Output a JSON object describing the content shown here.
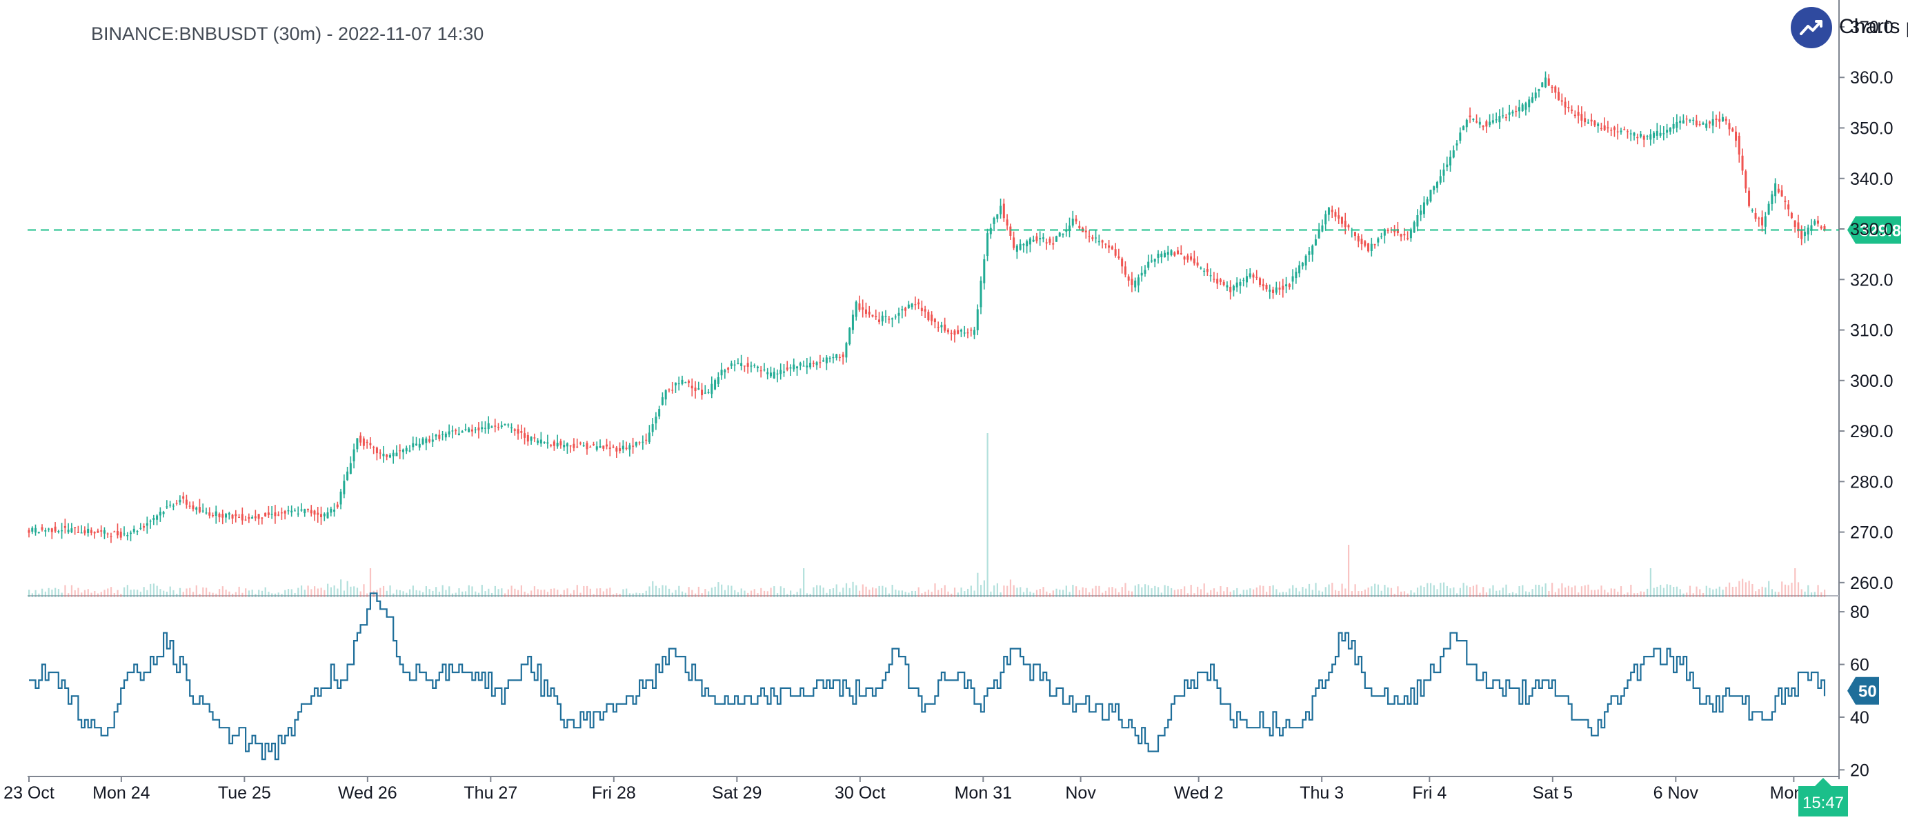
{
  "header": {
    "title": "BINANCE:BNBUSDT (30m) - 2022-11-07 14:30",
    "brand_text": "Charts p"
  },
  "colors": {
    "up": "#26a69a",
    "up_candle": "#22ab94",
    "down": "#ef5350",
    "rsi": "#1e6e9a",
    "price_line": "#1bbf8a",
    "axis": "#7f8590",
    "logo": "#2f4a9f"
  },
  "chart_data": [
    {
      "type": "candlestick",
      "title": "BINANCE:BNBUSDT (30m) - 2022-11-07 14:30",
      "interval": "30m",
      "x_ticks": [
        "23 Oct",
        "Mon 24",
        "Tue 25",
        "Wed 26",
        "Thu 27",
        "Fri 28",
        "Sat 29",
        "30 Oct",
        "Mon 31",
        "Nov",
        "Wed 2",
        "Thu 3",
        "Fri 4",
        "Sat 5",
        "6 Nov",
        "Mon 7"
      ],
      "y_ticks": [
        260.0,
        270.0,
        280.0,
        290.0,
        300.0,
        310.0,
        320.0,
        330.0,
        340.0,
        350.0,
        360.0,
        370.0
      ],
      "y_tick_labels": [
        "260.0",
        "270.0",
        "280.0",
        "290.0",
        "300.0",
        "310.0",
        "320.0",
        "330.0",
        "340.0",
        "350.0",
        "360.0",
        "370.0"
      ],
      "ylim": [
        255.2,
        371.5
      ],
      "last_price": 329.8,
      "last_price_label": "329.8",
      "time_label": "15:47",
      "close_path": [
        [
          0,
          270.3
        ],
        [
          10,
          270.6
        ],
        [
          20,
          270.0
        ],
        [
          28,
          269.5
        ],
        [
          34,
          270.8
        ],
        [
          40,
          274.0
        ],
        [
          46,
          276.5
        ],
        [
          52,
          274.0
        ],
        [
          58,
          273.5
        ],
        [
          66,
          272.8
        ],
        [
          74,
          273.5
        ],
        [
          84,
          274.2
        ],
        [
          90,
          273.3
        ],
        [
          94,
          275.5
        ],
        [
          100,
          288.5
        ],
        [
          108,
          285.0
        ],
        [
          114,
          286.0
        ],
        [
          120,
          288.0
        ],
        [
          128,
          289.5
        ],
        [
          136,
          290.5
        ],
        [
          144,
          291.5
        ],
        [
          152,
          288.5
        ],
        [
          160,
          287.5
        ],
        [
          170,
          287.0
        ],
        [
          180,
          286.5
        ],
        [
          188,
          288.0
        ],
        [
          194,
          298.0
        ],
        [
          200,
          300.0
        ],
        [
          206,
          297.0
        ],
        [
          212,
          302.5
        ],
        [
          218,
          303.5
        ],
        [
          226,
          301.0
        ],
        [
          232,
          302.5
        ],
        [
          240,
          303.5
        ],
        [
          248,
          305.0
        ],
        [
          252,
          315.0
        ],
        [
          258,
          312.0
        ],
        [
          264,
          313.0
        ],
        [
          270,
          315.5
        ],
        [
          276,
          311.0
        ],
        [
          282,
          309.5
        ],
        [
          288,
          309.5
        ],
        [
          292,
          329.5
        ],
        [
          296,
          334.5
        ],
        [
          300,
          326.0
        ],
        [
          306,
          328.0
        ],
        [
          312,
          327.5
        ],
        [
          318,
          331.5
        ],
        [
          324,
          328.0
        ],
        [
          330,
          326.5
        ],
        [
          336,
          318.5
        ],
        [
          342,
          324.0
        ],
        [
          348,
          325.5
        ],
        [
          354,
          324.0
        ],
        [
          360,
          320.5
        ],
        [
          366,
          318.0
        ],
        [
          372,
          321.0
        ],
        [
          378,
          317.5
        ],
        [
          384,
          319.0
        ],
        [
          390,
          325.5
        ],
        [
          396,
          334.0
        ],
        [
          402,
          330.0
        ],
        [
          408,
          326.0
        ],
        [
          414,
          330.0
        ],
        [
          420,
          328.5
        ],
        [
          426,
          336.0
        ],
        [
          432,
          343.0
        ],
        [
          438,
          352.0
        ],
        [
          444,
          350.5
        ],
        [
          450,
          352.5
        ],
        [
          456,
          354.5
        ],
        [
          462,
          359.5
        ],
        [
          468,
          354.0
        ],
        [
          474,
          351.5
        ],
        [
          480,
          350.0
        ],
        [
          486,
          349.5
        ],
        [
          492,
          348.0
        ],
        [
          498,
          349.5
        ],
        [
          504,
          351.5
        ],
        [
          510,
          350.5
        ],
        [
          516,
          352.0
        ],
        [
          520,
          348.0
        ],
        [
          524,
          334.0
        ],
        [
          528,
          331.0
        ],
        [
          532,
          338.5
        ],
        [
          536,
          333.5
        ],
        [
          540,
          328.5
        ],
        [
          544,
          331.5
        ],
        [
          547,
          329.8
        ]
      ]
    },
    {
      "type": "line",
      "name": "RSI",
      "y_ticks": [
        20,
        40,
        60,
        80
      ],
      "y_tick_labels": [
        "20",
        "40",
        "60",
        "80"
      ],
      "ylim": [
        18,
        85
      ],
      "last_value": 50,
      "last_value_label": "50",
      "path": [
        [
          0,
          53
        ],
        [
          8,
          58
        ],
        [
          16,
          39
        ],
        [
          22,
          33
        ],
        [
          30,
          53
        ],
        [
          36,
          60
        ],
        [
          42,
          69
        ],
        [
          50,
          50
        ],
        [
          58,
          35
        ],
        [
          66,
          31
        ],
        [
          74,
          27
        ],
        [
          84,
          43
        ],
        [
          92,
          57
        ],
        [
          96,
          51
        ],
        [
          104,
          86
        ],
        [
          108,
          80
        ],
        [
          114,
          59
        ],
        [
          124,
          55
        ],
        [
          134,
          58
        ],
        [
          144,
          49
        ],
        [
          152,
          61
        ],
        [
          164,
          37
        ],
        [
          176,
          43
        ],
        [
          190,
          53
        ],
        [
          196,
          68
        ],
        [
          206,
          47
        ],
        [
          220,
          45
        ],
        [
          232,
          49
        ],
        [
          244,
          53
        ],
        [
          256,
          47
        ],
        [
          264,
          65
        ],
        [
          272,
          45
        ],
        [
          282,
          58
        ],
        [
          290,
          45
        ],
        [
          300,
          65
        ],
        [
          310,
          52
        ],
        [
          320,
          44
        ],
        [
          330,
          43
        ],
        [
          342,
          28
        ],
        [
          350,
          48
        ],
        [
          360,
          57
        ],
        [
          366,
          41
        ],
        [
          372,
          38
        ],
        [
          384,
          38
        ],
        [
          390,
          42
        ],
        [
          400,
          72
        ],
        [
          408,
          52
        ],
        [
          418,
          44
        ],
        [
          428,
          58
        ],
        [
          434,
          74
        ],
        [
          440,
          57
        ],
        [
          452,
          49
        ],
        [
          464,
          52
        ],
        [
          470,
          42
        ],
        [
          476,
          33
        ],
        [
          484,
          48
        ],
        [
          494,
          66
        ],
        [
          504,
          58
        ],
        [
          512,
          44
        ],
        [
          520,
          48
        ],
        [
          528,
          40
        ],
        [
          536,
          50
        ],
        [
          542,
          58
        ],
        [
          547,
          50
        ]
      ]
    }
  ]
}
